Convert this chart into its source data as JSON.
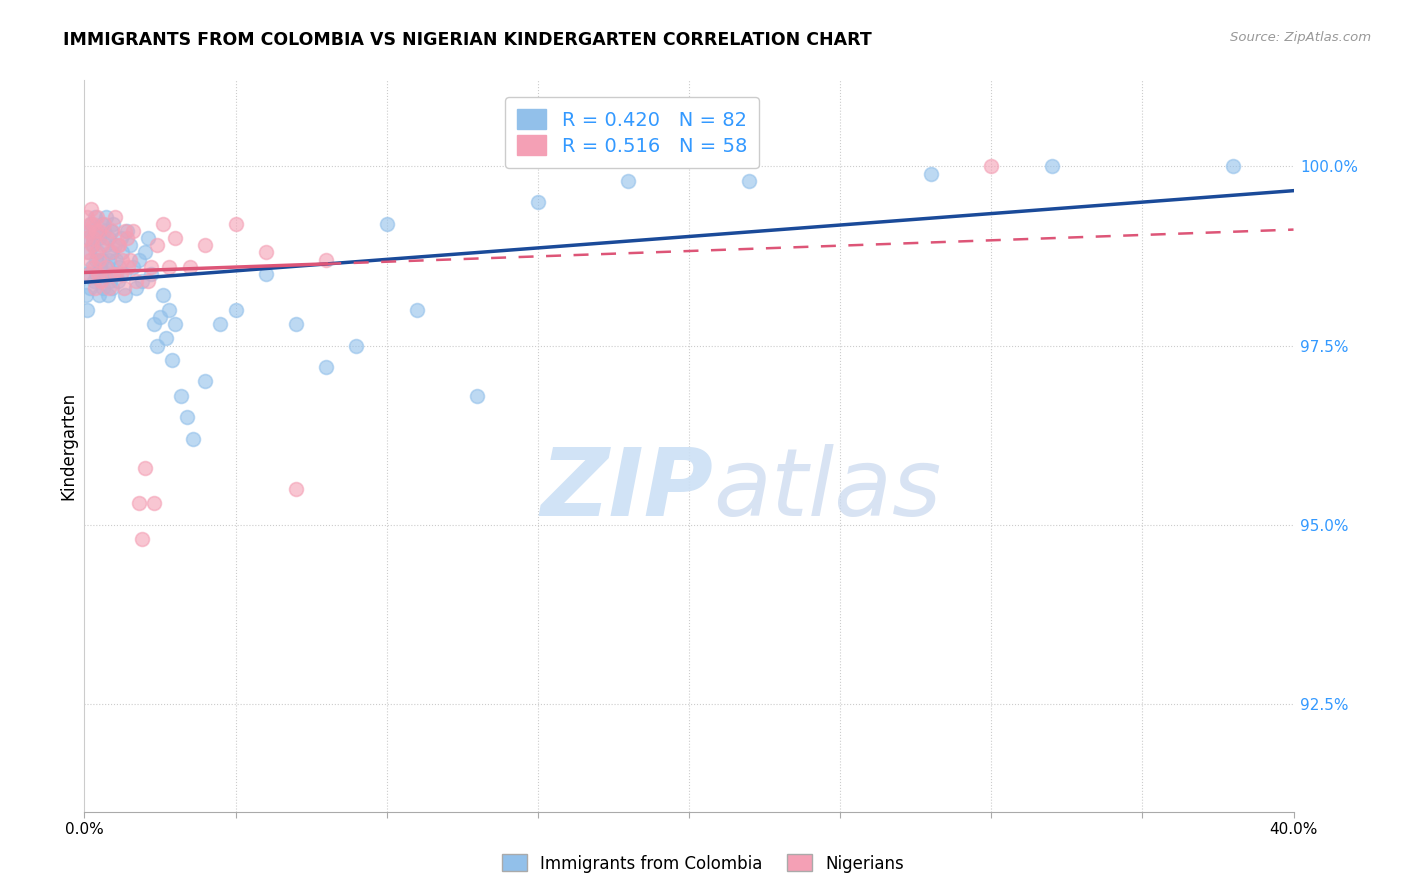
{
  "title": "IMMIGRANTS FROM COLOMBIA VS NIGERIAN KINDERGARTEN CORRELATION CHART",
  "source": "Source: ZipAtlas.com",
  "ylabel": "Kindergarten",
  "yticks": [
    92.5,
    95.0,
    97.5,
    100.0
  ],
  "ytick_labels": [
    "92.5%",
    "95.0%",
    "97.5%",
    "100.0%"
  ],
  "xmin": 0.0,
  "xmax": 40.0,
  "ymin": 91.0,
  "ymax": 101.2,
  "r_colombia": 0.42,
  "n_colombia": 82,
  "r_nigeria": 0.516,
  "n_nigeria": 58,
  "colombia_color": "#92c0ea",
  "nigeria_color": "#f4a0b5",
  "colombia_line_color": "#1a4a99",
  "nigeria_line_color": "#dd5577",
  "colombia_x": [
    0.05,
    0.08,
    0.1,
    0.12,
    0.15,
    0.18,
    0.2,
    0.22,
    0.25,
    0.28,
    0.3,
    0.32,
    0.35,
    0.38,
    0.4,
    0.42,
    0.45,
    0.48,
    0.5,
    0.52,
    0.55,
    0.58,
    0.6,
    0.62,
    0.65,
    0.68,
    0.7,
    0.72,
    0.75,
    0.78,
    0.8,
    0.82,
    0.85,
    0.88,
    0.9,
    0.92,
    0.95,
    0.98,
    1.0,
    1.05,
    1.1,
    1.15,
    1.2,
    1.25,
    1.3,
    1.35,
    1.4,
    1.5,
    1.6,
    1.7,
    1.8,
    1.9,
    2.0,
    2.1,
    2.2,
    2.3,
    2.4,
    2.5,
    2.6,
    2.7,
    2.8,
    2.9,
    3.0,
    3.2,
    3.4,
    3.6,
    4.0,
    4.5,
    5.0,
    6.0,
    7.0,
    8.0,
    9.0,
    10.0,
    11.0,
    13.0,
    15.0,
    18.0,
    22.0,
    28.0,
    32.0,
    38.0
  ],
  "colombia_y": [
    98.2,
    98.5,
    98.0,
    99.0,
    98.8,
    99.1,
    98.3,
    99.2,
    98.6,
    98.9,
    99.0,
    98.4,
    99.3,
    98.7,
    98.5,
    99.1,
    98.8,
    98.2,
    99.0,
    98.6,
    98.4,
    99.2,
    98.7,
    98.3,
    99.1,
    98.5,
    98.9,
    99.3,
    98.6,
    98.2,
    99.0,
    98.7,
    98.4,
    99.1,
    98.8,
    98.3,
    99.2,
    98.5,
    98.9,
    98.7,
    98.4,
    98.6,
    99.0,
    98.8,
    98.5,
    98.2,
    99.1,
    98.9,
    98.6,
    98.3,
    98.7,
    98.4,
    98.8,
    99.0,
    98.5,
    97.8,
    97.5,
    97.9,
    98.2,
    97.6,
    98.0,
    97.3,
    97.8,
    96.8,
    96.5,
    96.2,
    97.0,
    97.8,
    98.0,
    98.5,
    97.8,
    97.2,
    97.5,
    99.2,
    98.0,
    96.8,
    99.5,
    99.8,
    99.8,
    99.9,
    100.0,
    100.0
  ],
  "nigeria_x": [
    0.05,
    0.08,
    0.1,
    0.12,
    0.15,
    0.18,
    0.2,
    0.22,
    0.25,
    0.28,
    0.3,
    0.32,
    0.35,
    0.38,
    0.4,
    0.42,
    0.45,
    0.48,
    0.5,
    0.55,
    0.6,
    0.65,
    0.7,
    0.75,
    0.8,
    0.85,
    0.9,
    0.95,
    1.0,
    1.1,
    1.2,
    1.3,
    1.4,
    1.5,
    1.6,
    1.7,
    1.8,
    1.9,
    2.0,
    2.2,
    2.4,
    2.6,
    2.8,
    3.0,
    3.5,
    4.0,
    5.0,
    6.0,
    7.0,
    8.0,
    1.05,
    1.15,
    1.25,
    1.35,
    1.45,
    2.1,
    2.3,
    30.0
  ],
  "nigeria_y": [
    99.0,
    99.3,
    98.8,
    99.1,
    98.5,
    99.2,
    98.7,
    99.4,
    98.9,
    99.0,
    99.2,
    98.6,
    98.3,
    99.1,
    98.8,
    99.3,
    98.5,
    98.7,
    99.1,
    98.4,
    98.9,
    99.2,
    98.6,
    99.0,
    98.3,
    98.8,
    99.1,
    98.5,
    99.3,
    98.9,
    98.5,
    98.3,
    99.0,
    98.7,
    99.1,
    98.4,
    95.3,
    94.8,
    95.8,
    98.6,
    98.9,
    99.2,
    98.6,
    99.0,
    98.6,
    98.9,
    99.2,
    98.8,
    95.5,
    98.7,
    98.5,
    98.9,
    98.7,
    99.1,
    98.6,
    98.4,
    95.3,
    100.0
  ]
}
